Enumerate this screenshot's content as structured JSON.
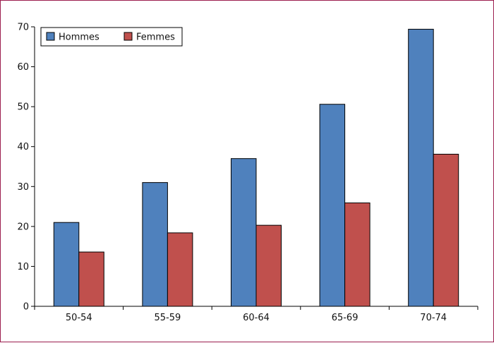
{
  "chart_data": {
    "type": "bar",
    "categories": [
      "50-54",
      "55-59",
      "60-64",
      "65-69",
      "70-74"
    ],
    "series": [
      {
        "name": "Hommes",
        "color": "#4f81bd",
        "values": [
          21,
          31,
          37,
          50.6,
          69.4
        ]
      },
      {
        "name": "Femmes",
        "color": "#c0504d",
        "values": [
          13.6,
          18.4,
          20.3,
          25.9,
          38.1
        ]
      }
    ],
    "ylim": [
      0,
      70
    ],
    "yticks": [
      0,
      10,
      20,
      30,
      40,
      50,
      60,
      70
    ],
    "grid": false,
    "legend_position": "top-left",
    "title": "",
    "xlabel": "",
    "ylabel": ""
  }
}
